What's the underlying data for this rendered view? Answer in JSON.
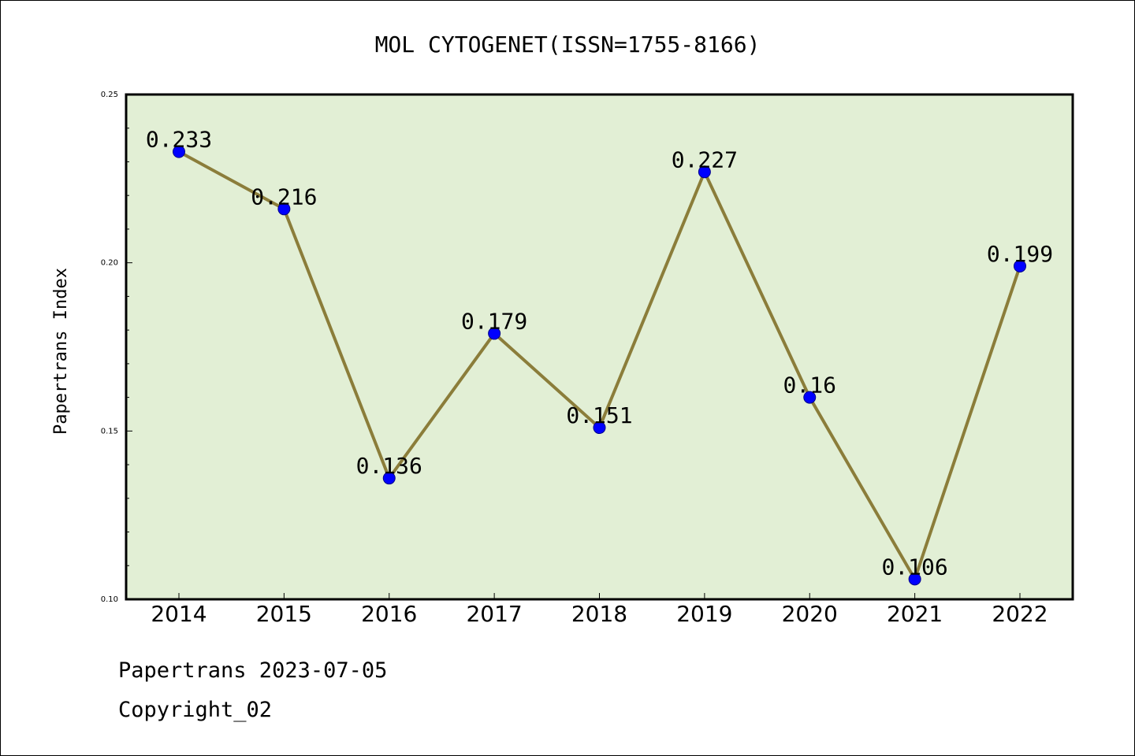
{
  "chart_data": {
    "type": "line",
    "title": "MOL CYTOGENET(ISSN=1755-8166)",
    "xlabel": "",
    "ylabel": "Papertrans Index",
    "categories": [
      "2014",
      "2015",
      "2016",
      "2017",
      "2018",
      "2019",
      "2020",
      "2021",
      "2022"
    ],
    "values": [
      0.233,
      0.216,
      0.136,
      0.179,
      0.151,
      0.227,
      0.16,
      0.106,
      0.199
    ],
    "data_labels": [
      "0.233",
      "0.216",
      "0.136",
      "0.179",
      "0.151",
      "0.227",
      "0.16",
      "0.106",
      "0.199"
    ],
    "ylim": [
      0.1,
      0.25
    ],
    "yticks": [
      "0.10",
      "0.15",
      "0.20",
      "0.25"
    ],
    "grid": false,
    "colors": {
      "plot_background": "#e2efd5",
      "line": "#8b7d3a",
      "marker": "#0000ff"
    }
  },
  "footer": {
    "line1": "Papertrans 2023-07-05",
    "line2": "Copyright_02"
  }
}
